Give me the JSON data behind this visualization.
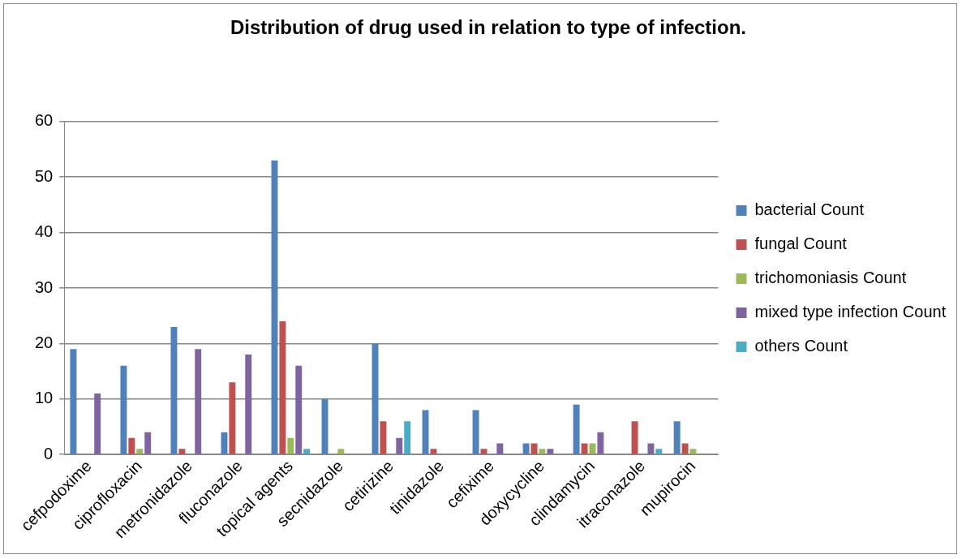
{
  "chart_data": {
    "type": "bar",
    "title": "Distribution of drug used in relation to type of infection.",
    "categories": [
      "cefpodoxime",
      "ciprofloxacin",
      "metronidazole",
      "fluconazole",
      "topical agents",
      "secnidazole",
      "cetirizine",
      "tinidazole",
      "cefixime",
      "doxycycline",
      "clindamycin",
      "itraconazole",
      "mupirocin"
    ],
    "series": [
      {
        "name": "bacterial Count",
        "color": "#4f81bd",
        "values": [
          19,
          16,
          23,
          4,
          53,
          10,
          20,
          8,
          8,
          2,
          9,
          0,
          6
        ]
      },
      {
        "name": "fungal Count",
        "color": "#c0504d",
        "values": [
          0,
          3,
          1,
          13,
          24,
          0,
          6,
          1,
          1,
          2,
          2,
          6,
          2
        ]
      },
      {
        "name": "trichomoniasis Count",
        "color": "#9bbb59",
        "values": [
          0,
          1,
          0,
          0,
          3,
          1,
          0,
          0,
          0,
          1,
          2,
          0,
          1
        ]
      },
      {
        "name": "mixed type infection Count",
        "color": "#8064a2",
        "values": [
          11,
          4,
          19,
          18,
          16,
          0,
          3,
          0,
          2,
          1,
          4,
          2,
          0
        ]
      },
      {
        "name": "others Count",
        "color": "#4bacc6",
        "values": [
          0,
          0,
          0,
          0,
          1,
          0,
          6,
          0,
          0,
          0,
          0,
          1,
          0
        ]
      }
    ],
    "ylim": [
      0,
      60
    ],
    "yticks": [
      0,
      10,
      20,
      30,
      40,
      50,
      60
    ],
    "grid": "y",
    "legend": "right"
  }
}
